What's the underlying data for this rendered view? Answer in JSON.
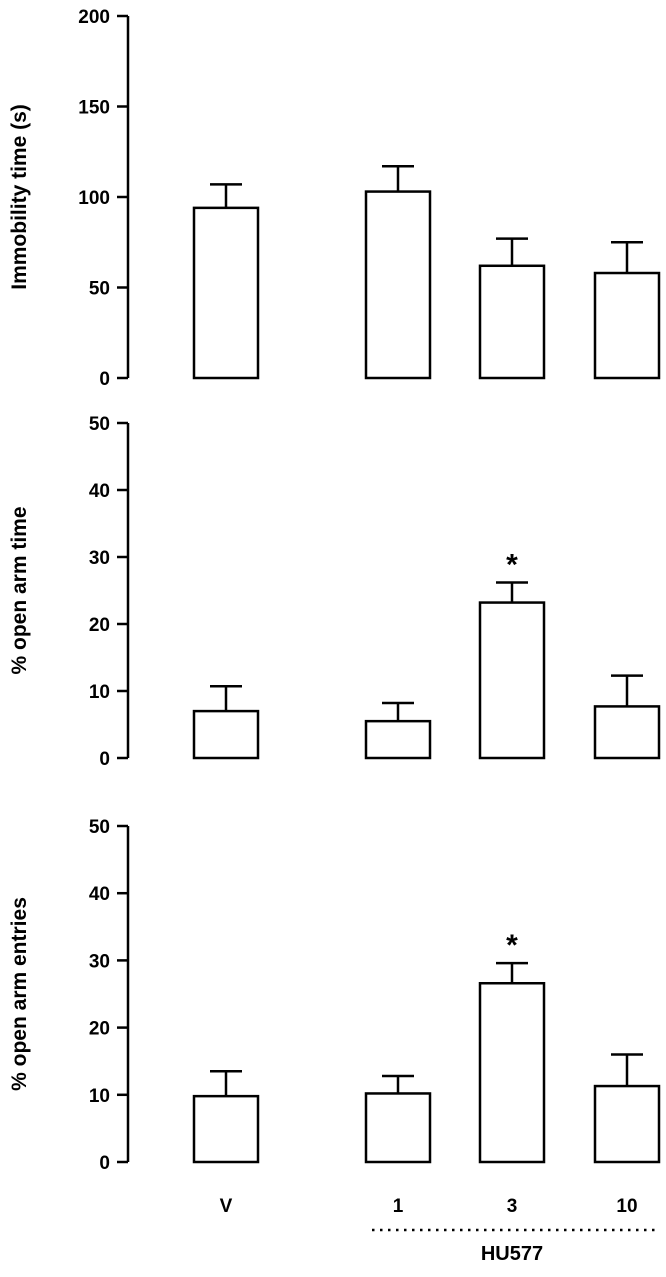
{
  "chart_data": [
    {
      "type": "bar",
      "panel": "top",
      "ylabel": "Immobility time (s)",
      "ylim": [
        0,
        200
      ],
      "yticks": [
        0,
        50,
        100,
        150,
        200
      ],
      "categories": [
        "V",
        "1",
        "3",
        "10"
      ],
      "values": [
        94,
        103,
        62,
        58
      ],
      "errors": [
        13,
        14,
        15,
        17
      ],
      "significance": [
        "",
        "",
        "",
        ""
      ]
    },
    {
      "type": "bar",
      "panel": "middle",
      "ylabel": "% open arm time",
      "ylim": [
        0,
        50
      ],
      "yticks": [
        0,
        10,
        20,
        30,
        40,
        50
      ],
      "categories": [
        "V",
        "1",
        "3",
        "10"
      ],
      "values": [
        7,
        5.5,
        23.2,
        7.7
      ],
      "errors": [
        3.7,
        2.7,
        3.0,
        4.6
      ],
      "significance": [
        "",
        "",
        "*",
        ""
      ]
    },
    {
      "type": "bar",
      "panel": "bottom",
      "ylabel": "% open arm entries",
      "ylim": [
        0,
        50
      ],
      "yticks": [
        0,
        10,
        20,
        30,
        40,
        50
      ],
      "categories": [
        "V",
        "1",
        "3",
        "10"
      ],
      "values": [
        9.8,
        10.2,
        26.6,
        11.3
      ],
      "errors": [
        3.7,
        2.6,
        3.0,
        4.7
      ],
      "significance": [
        "",
        "",
        "*",
        ""
      ]
    }
  ],
  "x_axis": {
    "category_labels": [
      "V",
      "1",
      "3",
      "10"
    ],
    "group_label": "HU577"
  },
  "style": {
    "bar_fill": "#ffffff",
    "stroke": "#000000"
  }
}
